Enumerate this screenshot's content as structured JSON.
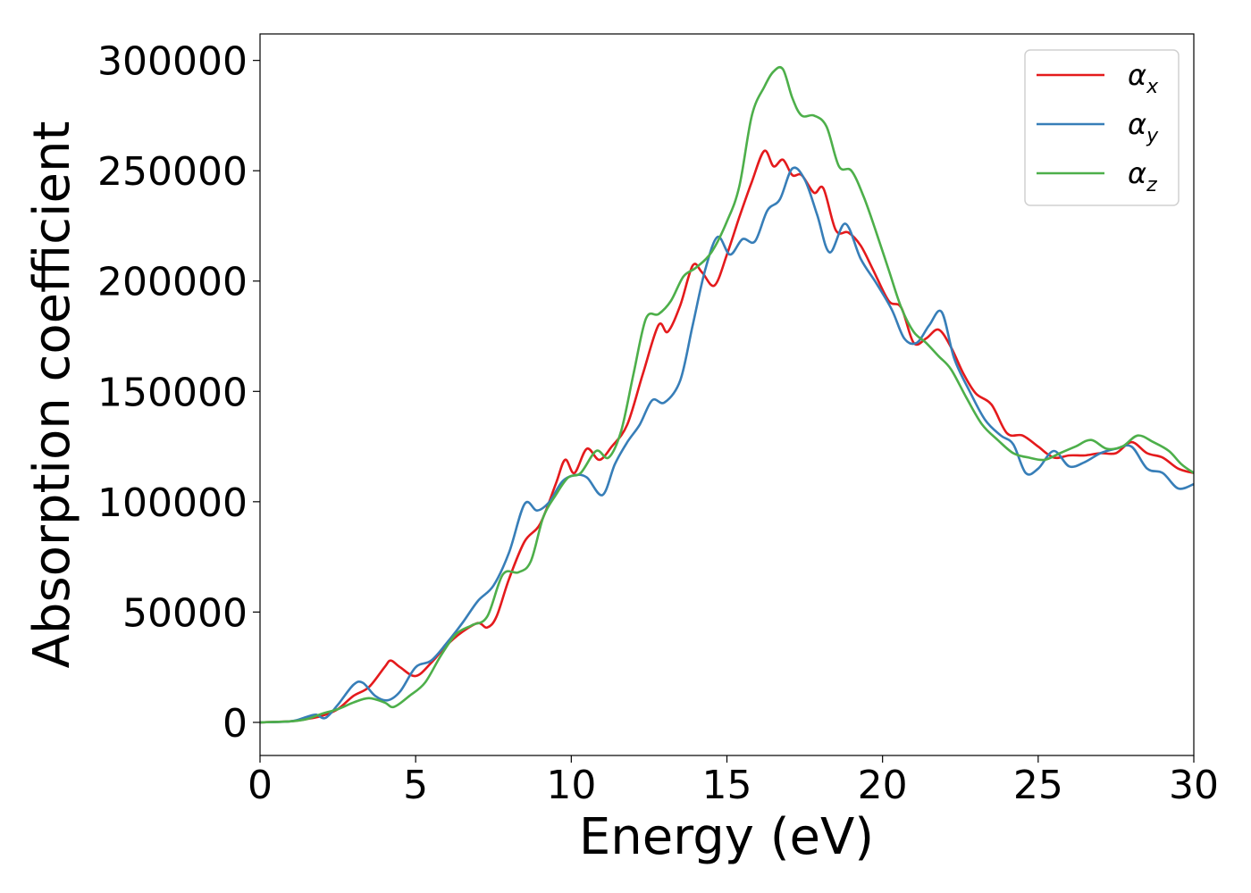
{
  "chart_data": {
    "type": "line",
    "xlabel": "Energy (eV)",
    "ylabel": "Absorption coefficient",
    "xlim": [
      0,
      30
    ],
    "ylim": [
      -15000,
      312000
    ],
    "xticks": [
      "0",
      "5",
      "10",
      "15",
      "20",
      "25",
      "30"
    ],
    "xtick_values": [
      0,
      5,
      10,
      15,
      20,
      25,
      30
    ],
    "yticks": [
      "0",
      "50000",
      "100000",
      "150000",
      "200000",
      "250000",
      "300000"
    ],
    "ytick_values": [
      0,
      50000,
      100000,
      150000,
      200000,
      250000,
      300000
    ],
    "grid": false,
    "legend_position": "top-right",
    "series": [
      {
        "name": "α_x",
        "label_base": "α",
        "label_sub": "x",
        "color": "#e41a1c",
        "x": [
          0,
          1,
          1.5,
          2,
          2.5,
          3,
          3.5,
          4,
          4.2,
          4.5,
          5,
          5.5,
          6,
          6.5,
          7,
          7.3,
          7.6,
          8,
          8.5,
          9,
          9.5,
          9.8,
          10.1,
          10.5,
          10.9,
          11.3,
          11.8,
          12.3,
          12.8,
          13.1,
          13.5,
          13.9,
          14.2,
          14.6,
          15,
          15.4,
          15.8,
          16.2,
          16.5,
          16.8,
          17.1,
          17.4,
          17.8,
          18.1,
          18.5,
          18.9,
          19.3,
          19.7,
          20.2,
          20.6,
          21,
          21.4,
          21.8,
          22.2,
          22.6,
          23,
          23.5,
          24,
          24.5,
          25,
          25.5,
          26,
          26.5,
          27,
          27.5,
          28,
          28.5,
          29,
          29.5,
          30
        ],
        "y": [
          0,
          500,
          1500,
          3000,
          6000,
          12000,
          16000,
          25000,
          28000,
          25000,
          21000,
          27000,
          35000,
          41000,
          45000,
          43000,
          48000,
          65000,
          82000,
          90000,
          108000,
          119000,
          113000,
          124000,
          119000,
          125000,
          135000,
          158000,
          180000,
          177000,
          189000,
          207000,
          204000,
          198000,
          212000,
          229000,
          245000,
          259000,
          252000,
          255000,
          248000,
          248000,
          240000,
          242000,
          223000,
          222000,
          216000,
          205000,
          191000,
          188000,
          172000,
          174000,
          178000,
          170000,
          158000,
          149000,
          144000,
          131000,
          130000,
          125000,
          120000,
          121000,
          121000,
          122000,
          122000,
          127000,
          122000,
          120000,
          115000,
          113000
        ]
      },
      {
        "name": "α_y",
        "label_base": "α",
        "label_sub": "y",
        "color": "#377eb8",
        "x": [
          0,
          1,
          1.5,
          1.8,
          2.1,
          2.5,
          3,
          3.3,
          3.7,
          4.1,
          4.5,
          5,
          5.5,
          6,
          6.5,
          7,
          7.5,
          8,
          8.5,
          8.9,
          9.3,
          9.7,
          10.1,
          10.5,
          11,
          11.4,
          11.8,
          12.2,
          12.6,
          13,
          13.5,
          13.9,
          14.3,
          14.7,
          15.1,
          15.5,
          15.9,
          16.3,
          16.7,
          17.1,
          17.5,
          17.9,
          18.3,
          18.8,
          19.3,
          19.8,
          20.3,
          20.7,
          21.1,
          21.5,
          21.9,
          22.3,
          22.8,
          23.3,
          23.8,
          24.2,
          24.6,
          25,
          25.5,
          26,
          26.5,
          27,
          27.5,
          28,
          28.5,
          29,
          29.5,
          30
        ],
        "y": [
          0,
          500,
          2500,
          3500,
          2000,
          8000,
          17000,
          18000,
          12000,
          10000,
          14000,
          25000,
          28000,
          36000,
          45000,
          55000,
          62000,
          77000,
          99000,
          96000,
          100000,
          109000,
          112000,
          111000,
          103000,
          117000,
          127000,
          135000,
          146000,
          145000,
          155000,
          180000,
          205000,
          220000,
          212000,
          219000,
          218000,
          232000,
          237000,
          251000,
          246000,
          230000,
          213000,
          226000,
          210000,
          199000,
          187000,
          174000,
          172000,
          180000,
          186000,
          165000,
          150000,
          137000,
          130000,
          126000,
          113000,
          115000,
          123000,
          116000,
          118000,
          122000,
          124000,
          125000,
          115000,
          113000,
          106000,
          108000
        ]
      },
      {
        "name": "α_z",
        "label_base": "α",
        "label_sub": "z",
        "color": "#4daf4a",
        "x": [
          0,
          1,
          1.5,
          2,
          2.5,
          3,
          3.5,
          4,
          4.3,
          4.8,
          5.3,
          5.8,
          6.3,
          6.8,
          7.3,
          7.8,
          8.3,
          8.7,
          9.1,
          9.5,
          9.9,
          10.3,
          10.8,
          11.2,
          11.6,
          12,
          12.4,
          12.8,
          13.2,
          13.6,
          14,
          14.5,
          15,
          15.4,
          15.8,
          16.2,
          16.5,
          16.8,
          17.1,
          17.4,
          17.8,
          18.2,
          18.6,
          19,
          19.4,
          19.8,
          20.2,
          20.6,
          21,
          21.4,
          21.8,
          22.2,
          22.7,
          23.2,
          23.7,
          24.2,
          24.7,
          25.2,
          25.7,
          26.2,
          26.7,
          27.2,
          27.7,
          28.2,
          28.7,
          29.2,
          29.6,
          30
        ],
        "y": [
          0,
          500,
          1500,
          4000,
          6000,
          9000,
          11000,
          9000,
          7000,
          12000,
          18000,
          30000,
          40000,
          44000,
          48000,
          67000,
          68000,
          73000,
          93000,
          103000,
          111000,
          113000,
          123000,
          120000,
          132000,
          158000,
          183000,
          185000,
          191000,
          202000,
          206000,
          213000,
          227000,
          243000,
          275000,
          288000,
          295000,
          296000,
          283000,
          275000,
          275000,
          270000,
          252000,
          250000,
          238000,
          222000,
          205000,
          188000,
          177000,
          172000,
          166000,
          160000,
          147000,
          135000,
          128000,
          122000,
          120000,
          119000,
          122000,
          125000,
          128000,
          124000,
          125000,
          130000,
          127000,
          123000,
          117000,
          113000
        ]
      }
    ]
  }
}
